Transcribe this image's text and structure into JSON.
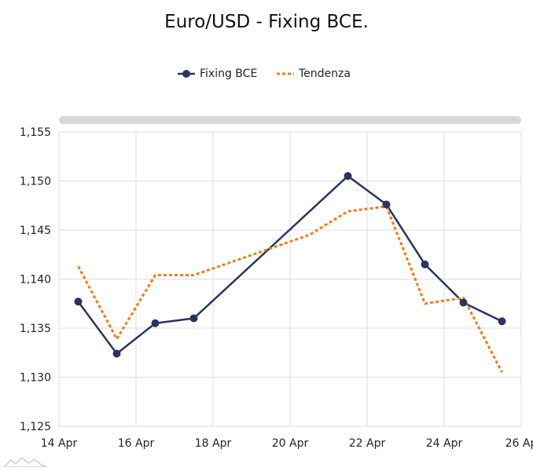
{
  "chart_data": {
    "type": "line",
    "title": "Euro/USD - Fixing BCE.",
    "x_tick_labels": [
      "14 Apr",
      "16 Apr",
      "18 Apr",
      "20 Apr",
      "22 Apr",
      "24 Apr",
      "26 Ap"
    ],
    "y_tick_labels": [
      "1,125",
      "1,130",
      "1,135",
      "1,140",
      "1,145",
      "1,150",
      "1,155"
    ],
    "x_axis_range": [
      "2018-04-14",
      "2018-04-26"
    ],
    "ylim": [
      1.125,
      1.155
    ],
    "grid": true,
    "legend_position": "top-center",
    "series": [
      {
        "name": "Fixing BCE",
        "color": "#283462",
        "style": "solid-with-markers",
        "points": [
          {
            "x": "2018-04-14T12:00",
            "y": 1.1377
          },
          {
            "x": "2018-04-15T12:00",
            "y": 1.1324
          },
          {
            "x": "2018-04-16T12:00",
            "y": 1.1355
          },
          {
            "x": "2018-04-17T12:00",
            "y": 1.136
          },
          {
            "x": "2018-04-21T12:00",
            "y": 1.1505
          },
          {
            "x": "2018-04-22T12:00",
            "y": 1.1476
          },
          {
            "x": "2018-04-23T12:00",
            "y": 1.1415
          },
          {
            "x": "2018-04-24T12:00",
            "y": 1.1376
          },
          {
            "x": "2018-04-25T12:00",
            "y": 1.1357
          }
        ]
      },
      {
        "name": "Tendenza",
        "color": "#f07c1c",
        "style": "dotted",
        "points": [
          {
            "x": "2018-04-14T12:00",
            "y": 1.1413
          },
          {
            "x": "2018-04-15T12:00",
            "y": 1.1339
          },
          {
            "x": "2018-04-16T12:00",
            "y": 1.1404
          },
          {
            "x": "2018-04-17T12:00",
            "y": 1.1404
          },
          {
            "x": "2018-04-20T12:00",
            "y": 1.1445
          },
          {
            "x": "2018-04-21T12:00",
            "y": 1.1469
          },
          {
            "x": "2018-04-22T12:00",
            "y": 1.1474
          },
          {
            "x": "2018-04-23T12:00",
            "y": 1.1375
          },
          {
            "x": "2018-04-24T12:00",
            "y": 1.1381
          },
          {
            "x": "2018-04-25T12:00",
            "y": 1.1305
          }
        ]
      }
    ]
  },
  "watermark_icon": "chart-logo-icon"
}
